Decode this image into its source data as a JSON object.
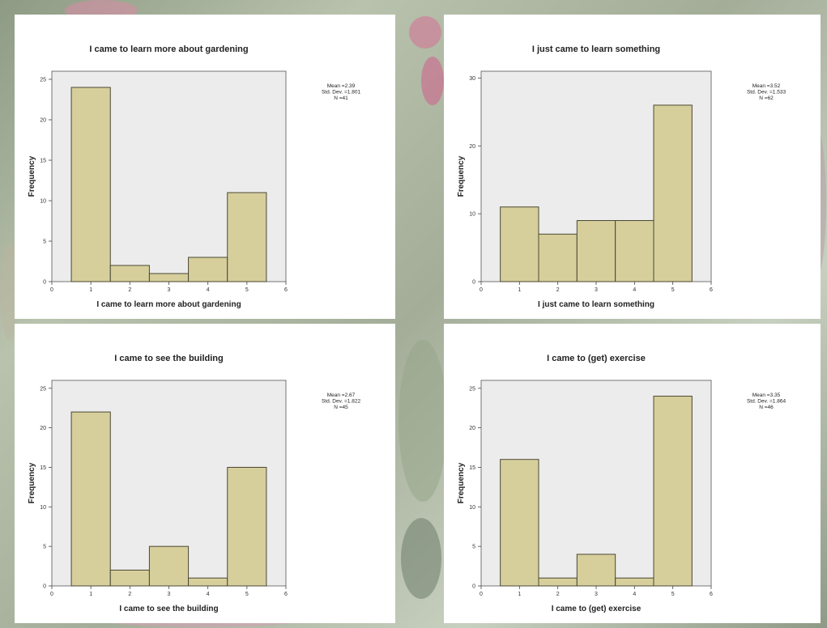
{
  "colors": {
    "bar_fill": "#d6cf9c",
    "bar_stroke": "#4b4733",
    "plot_bg": "#ececec",
    "panel_bg": "#ffffff"
  },
  "chart_data": [
    {
      "type": "bar",
      "title": "I came to learn more about gardening",
      "xlabel": "I came to learn more about gardening",
      "ylabel": "Frequency",
      "categories": [
        "1",
        "2",
        "3",
        "4",
        "5"
      ],
      "values": [
        24,
        2,
        1,
        3,
        11
      ],
      "xticks": [
        "0",
        "1",
        "2",
        "3",
        "4",
        "5",
        "6"
      ],
      "xlim": [
        0,
        6
      ],
      "ylim": [
        0,
        26
      ],
      "yticks": [
        "0",
        "5",
        "10",
        "15",
        "20",
        "25"
      ],
      "stats": [
        "Mean =2.39",
        "Std. Dev. =1.801",
        "N =41"
      ],
      "grid": false
    },
    {
      "type": "bar",
      "title": "I just came to learn something",
      "xlabel": "I just came to learn something",
      "ylabel": "Frequency",
      "categories": [
        "1",
        "2",
        "3",
        "4",
        "5"
      ],
      "values": [
        11,
        7,
        9,
        9,
        26
      ],
      "xticks": [
        "0",
        "1",
        "2",
        "3",
        "4",
        "5",
        "6"
      ],
      "xlim": [
        0,
        6
      ],
      "ylim": [
        0,
        31
      ],
      "yticks": [
        "0",
        "10",
        "20",
        "30"
      ],
      "stats": [
        "Mean =3.52",
        "Std. Dev. =1.533",
        "N =62"
      ],
      "grid": false
    },
    {
      "type": "bar",
      "title": "I came to see the building",
      "xlabel": "I came to see the building",
      "ylabel": "Frequency",
      "categories": [
        "1",
        "2",
        "3",
        "4",
        "5"
      ],
      "values": [
        22,
        2,
        5,
        1,
        15
      ],
      "xticks": [
        "0",
        "1",
        "2",
        "3",
        "4",
        "5",
        "6"
      ],
      "xlim": [
        0,
        6
      ],
      "ylim": [
        0,
        26
      ],
      "yticks": [
        "0",
        "5",
        "10",
        "15",
        "20",
        "25"
      ],
      "stats": [
        "Mean =2.67",
        "Std. Dev. =1.822",
        "N =45"
      ],
      "grid": false
    },
    {
      "type": "bar",
      "title": "I came to (get) exercise",
      "xlabel": "I came to (get) exercise",
      "ylabel": "Frequency",
      "categories": [
        "1",
        "2",
        "3",
        "4",
        "5"
      ],
      "values": [
        16,
        1,
        4,
        1,
        24
      ],
      "xticks": [
        "0",
        "1",
        "2",
        "3",
        "4",
        "5",
        "6"
      ],
      "xlim": [
        0,
        6
      ],
      "ylim": [
        0,
        26
      ],
      "yticks": [
        "0",
        "5",
        "10",
        "15",
        "20",
        "25"
      ],
      "stats": [
        "Mean =3.35",
        "Std. Dev. =1.864",
        "N =46"
      ],
      "grid": false
    }
  ]
}
